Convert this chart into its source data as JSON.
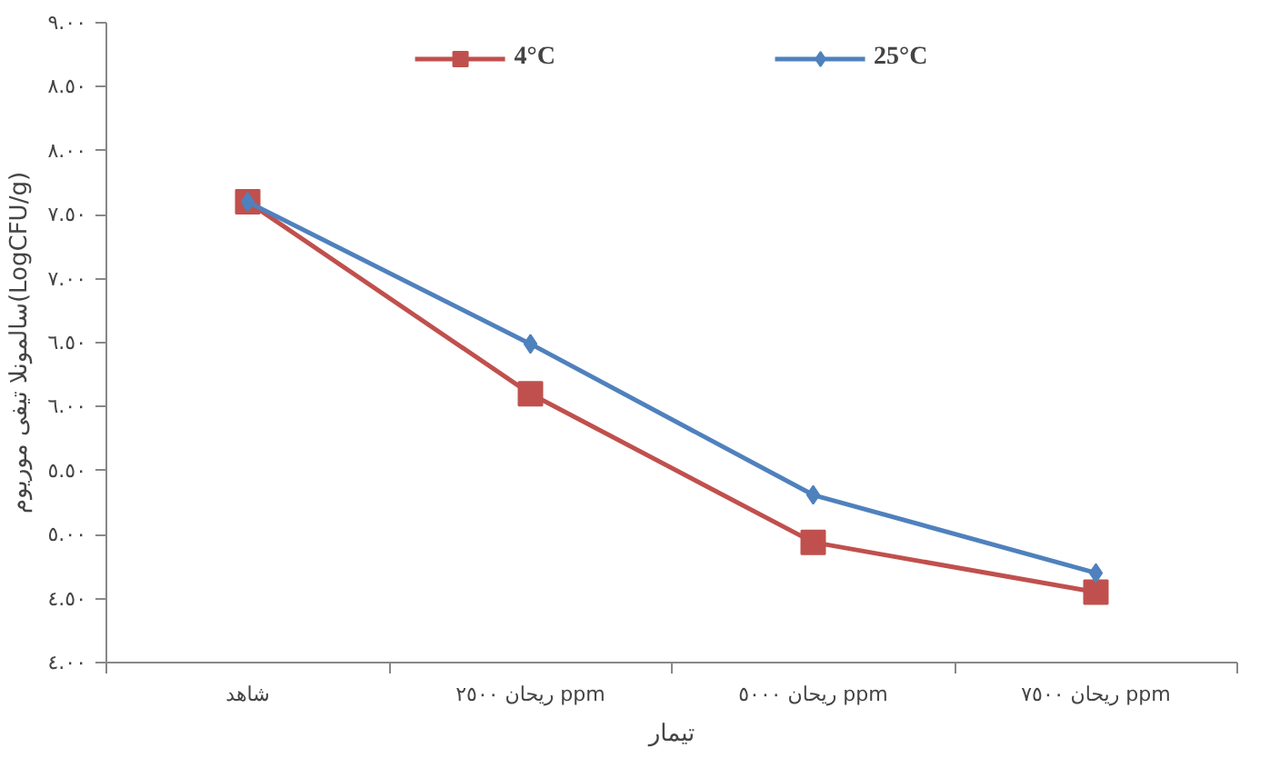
{
  "chart_data": {
    "type": "line",
    "categories": [
      "شاهد",
      "ریحان ٢٥٠٠ ppm",
      "ریحان ٥٠٠٠ ppm",
      "ریحان ٧٥٠٠ ppm"
    ],
    "series": [
      {
        "name": "4°C",
        "color": "#c0504d",
        "marker": "square",
        "values": [
          7.6,
          6.1,
          4.94,
          4.55
        ]
      },
      {
        "name": "25°C",
        "color": "#4f81bd",
        "marker": "diamond",
        "values": [
          7.6,
          6.49,
          5.31,
          4.7
        ]
      }
    ],
    "xlabel": "تیمار",
    "ylabel": "سالمونلا تیفی موریوم(LogCFU/g)",
    "ylim": [
      4,
      9
    ],
    "yticks": [
      {
        "value": 4,
        "label": "٤.٠٠"
      },
      {
        "value": 4.5,
        "label": "٤.٥٠"
      },
      {
        "value": 5,
        "label": "٥.٠٠"
      },
      {
        "value": 5.5,
        "label": "٥.٥٠"
      },
      {
        "value": 6,
        "label": "٦.٠٠"
      },
      {
        "value": 6.5,
        "label": "٦.٥٠"
      },
      {
        "value": 7,
        "label": "٧.٠٠"
      },
      {
        "value": 7.5,
        "label": "٧.٥٠"
      },
      {
        "value": 8,
        "label": "٨.٠٠"
      },
      {
        "value": 8.5,
        "label": "٨.٥٠"
      },
      {
        "value": 9,
        "label": "٩.٠٠"
      }
    ],
    "grid": false,
    "legend": "top",
    "line_style": "solid"
  }
}
